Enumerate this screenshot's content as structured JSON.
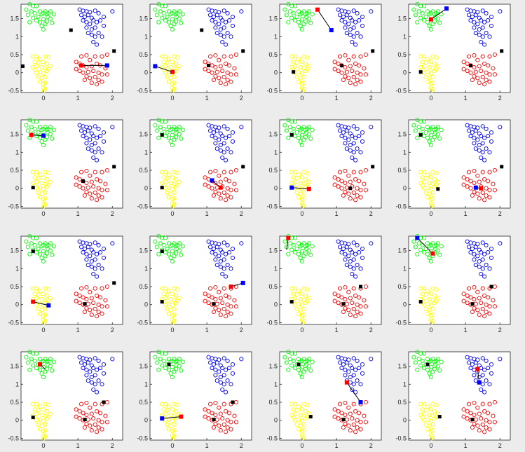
{
  "chart_data": {
    "type": "scatter",
    "description": "4x4 grid of small scatter-plot panels showing four clusters of points (open circles) and square markers linked by short line segments",
    "layout": {
      "rows": 4,
      "cols": 4
    },
    "axes": {
      "xlim": [
        -0.65,
        2.3
      ],
      "ylim": [
        -0.55,
        1.9
      ],
      "xticks": [
        0,
        1,
        2
      ],
      "xtick_labels": [
        "0",
        "1",
        "2"
      ],
      "yticks": [
        -0.5,
        0,
        0.5,
        1,
        1.5
      ],
      "ytick_labels": [
        "-0.5",
        "0",
        "0.5",
        "1",
        "1.5"
      ]
    },
    "colors": {
      "green": "#00ff00",
      "blue": "#0000ff",
      "yellow": "#ffff00",
      "red": "#ff0000",
      "black": "#000000",
      "background": "#ececec"
    },
    "clusters": [
      {
        "color": "green",
        "points": [
          [
            -0.4,
            1.9
          ],
          [
            -0.3,
            1.85
          ],
          [
            -0.2,
            1.85
          ],
          [
            -0.5,
            1.75
          ],
          [
            -0.45,
            1.6
          ],
          [
            -0.35,
            1.7
          ],
          [
            -0.25,
            1.65
          ],
          [
            -0.15,
            1.55
          ],
          [
            -0.1,
            1.7
          ],
          [
            -0.05,
            1.62
          ],
          [
            0.0,
            1.65
          ],
          [
            0.05,
            1.7
          ],
          [
            0.1,
            1.62
          ],
          [
            0.15,
            1.65
          ],
          [
            0.2,
            1.7
          ],
          [
            -0.2,
            1.45
          ],
          [
            -0.1,
            1.4
          ],
          [
            0.0,
            1.48
          ],
          [
            0.1,
            1.42
          ],
          [
            0.05,
            1.35
          ],
          [
            -0.05,
            1.3
          ],
          [
            0.0,
            1.2
          ],
          [
            0.12,
            1.55
          ],
          [
            0.2,
            1.5
          ],
          [
            -0.3,
            1.52
          ],
          [
            0.3,
            1.62
          ],
          [
            -0.4,
            1.4
          ],
          [
            0.25,
            1.38
          ]
        ]
      },
      {
        "color": "blue",
        "points": [
          [
            1.05,
            1.75
          ],
          [
            1.15,
            1.72
          ],
          [
            1.25,
            1.7
          ],
          [
            1.35,
            1.68
          ],
          [
            1.5,
            1.72
          ],
          [
            1.6,
            1.65
          ],
          [
            1.75,
            1.55
          ],
          [
            2.0,
            1.7
          ],
          [
            1.1,
            1.6
          ],
          [
            1.2,
            1.55
          ],
          [
            1.3,
            1.6
          ],
          [
            1.4,
            1.52
          ],
          [
            1.45,
            1.45
          ],
          [
            1.55,
            1.4
          ],
          [
            1.35,
            1.35
          ],
          [
            1.25,
            1.4
          ],
          [
            1.15,
            1.45
          ],
          [
            1.5,
            1.25
          ],
          [
            1.4,
            1.2
          ],
          [
            1.3,
            1.1
          ],
          [
            1.5,
            1.0
          ],
          [
            1.4,
            1.05
          ],
          [
            1.6,
            1.1
          ],
          [
            1.75,
            1.3
          ],
          [
            1.45,
            0.85
          ],
          [
            1.55,
            0.78
          ],
          [
            1.7,
            1.0
          ],
          [
            1.25,
            1.25
          ],
          [
            1.65,
            1.45
          ]
        ]
      },
      {
        "color": "yellow",
        "points": [
          [
            -0.3,
            0.45
          ],
          [
            -0.2,
            0.45
          ],
          [
            -0.1,
            0.38
          ],
          [
            0.05,
            0.45
          ],
          [
            0.15,
            0.42
          ],
          [
            -0.25,
            0.3
          ],
          [
            -0.15,
            0.28
          ],
          [
            0.0,
            0.3
          ],
          [
            0.1,
            0.25
          ],
          [
            -0.3,
            0.15
          ],
          [
            -0.2,
            0.18
          ],
          [
            -0.05,
            0.15
          ],
          [
            0.05,
            0.12
          ],
          [
            0.15,
            0.1
          ],
          [
            -0.2,
            0.0
          ],
          [
            -0.1,
            0.02
          ],
          [
            0.0,
            -0.02
          ],
          [
            0.1,
            0.05
          ],
          [
            -0.15,
            -0.12
          ],
          [
            -0.05,
            -0.15
          ],
          [
            0.05,
            -0.12
          ],
          [
            -0.1,
            -0.25
          ],
          [
            0.0,
            -0.3
          ],
          [
            0.05,
            -0.28
          ],
          [
            0.0,
            -0.42
          ],
          [
            0.05,
            -0.45
          ],
          [
            0.02,
            -0.5
          ],
          [
            -0.25,
            0.08
          ],
          [
            0.2,
            0.18
          ]
        ]
      },
      {
        "color": "red",
        "points": [
          [
            1.1,
            0.45
          ],
          [
            1.25,
            0.48
          ],
          [
            1.35,
            0.35
          ],
          [
            1.5,
            0.45
          ],
          [
            1.7,
            0.45
          ],
          [
            1.85,
            0.5
          ],
          [
            0.95,
            0.3
          ],
          [
            1.05,
            0.25
          ],
          [
            1.15,
            0.2
          ],
          [
            1.25,
            0.15
          ],
          [
            1.4,
            0.18
          ],
          [
            1.55,
            0.25
          ],
          [
            1.65,
            0.2
          ],
          [
            1.8,
            0.12
          ],
          [
            0.95,
            0.1
          ],
          [
            1.05,
            0.05
          ],
          [
            1.15,
            0.0
          ],
          [
            1.3,
            0.02
          ],
          [
            1.45,
            0.05
          ],
          [
            1.6,
            0.0
          ],
          [
            1.7,
            -0.05
          ],
          [
            1.25,
            -0.1
          ],
          [
            1.35,
            -0.15
          ],
          [
            1.5,
            -0.12
          ],
          [
            1.6,
            -0.2
          ],
          [
            1.4,
            -0.28
          ],
          [
            1.55,
            -0.32
          ],
          [
            1.7,
            -0.25
          ],
          [
            1.2,
            -0.2
          ],
          [
            1.85,
            -0.05
          ]
        ]
      }
    ],
    "panels": [
      {
        "markers": [
          {
            "c": "black",
            "x": -0.6,
            "y": 0.18
          },
          {
            "c": "black",
            "x": 0.8,
            "y": 1.18
          },
          {
            "c": "black",
            "x": 2.05,
            "y": 0.6
          },
          {
            "c": "red",
            "x": 1.1,
            "y": 0.2
          },
          {
            "c": "blue",
            "x": 1.85,
            "y": 0.2
          }
        ],
        "lines": [
          [
            [
              1.1,
              0.2
            ],
            [
              1.85,
              0.2
            ]
          ]
        ]
      },
      {
        "markers": [
          {
            "c": "blue",
            "x": -0.5,
            "y": 0.18
          },
          {
            "c": "red",
            "x": 0.0,
            "y": 0.02
          },
          {
            "c": "black",
            "x": 0.85,
            "y": 1.18
          },
          {
            "c": "black",
            "x": 2.05,
            "y": 0.6
          },
          {
            "c": "black",
            "x": 1.05,
            "y": 0.2
          }
        ],
        "lines": [
          [
            [
              -0.5,
              0.18
            ],
            [
              0.0,
              0.02
            ]
          ]
        ]
      },
      {
        "markers": [
          {
            "c": "red",
            "x": 0.45,
            "y": 1.75
          },
          {
            "c": "blue",
            "x": 0.85,
            "y": 1.18
          },
          {
            "c": "black",
            "x": 2.05,
            "y": 0.6
          },
          {
            "c": "black",
            "x": 1.15,
            "y": 0.2
          },
          {
            "c": "black",
            "x": -0.25,
            "y": 0.02
          }
        ],
        "lines": [
          [
            [
              0.45,
              1.75
            ],
            [
              0.85,
              1.18
            ]
          ]
        ]
      },
      {
        "markers": [
          {
            "c": "red",
            "x": 0.0,
            "y": 1.48
          },
          {
            "c": "blue",
            "x": 0.45,
            "y": 1.78
          },
          {
            "c": "black",
            "x": 2.05,
            "y": 0.6
          },
          {
            "c": "black",
            "x": 1.15,
            "y": 0.2
          },
          {
            "c": "black",
            "x": -0.3,
            "y": 0.02
          }
        ],
        "lines": [
          [
            [
              0.0,
              1.48
            ],
            [
              0.45,
              1.78
            ]
          ]
        ]
      },
      {
        "markers": [
          {
            "c": "red",
            "x": -0.35,
            "y": 1.48
          },
          {
            "c": "blue",
            "x": 0.0,
            "y": 1.46
          },
          {
            "c": "black",
            "x": 2.05,
            "y": 0.6
          },
          {
            "c": "black",
            "x": 1.15,
            "y": 0.2
          },
          {
            "c": "black",
            "x": -0.3,
            "y": 0.02
          }
        ],
        "lines": [
          [
            [
              -0.35,
              1.48
            ],
            [
              0.0,
              1.46
            ]
          ]
        ]
      },
      {
        "markers": [
          {
            "c": "black",
            "x": -0.3,
            "y": 1.48
          },
          {
            "c": "blue",
            "x": 1.15,
            "y": 0.22
          },
          {
            "c": "red",
            "x": 1.4,
            "y": 0.02
          },
          {
            "c": "black",
            "x": 2.05,
            "y": 0.6
          },
          {
            "c": "black",
            "x": -0.3,
            "y": 0.02
          }
        ],
        "lines": [
          [
            [
              1.15,
              0.22
            ],
            [
              1.4,
              0.02
            ]
          ]
        ]
      },
      {
        "markers": [
          {
            "c": "black",
            "x": -0.3,
            "y": 1.48
          },
          {
            "c": "blue",
            "x": -0.3,
            "y": 0.02
          },
          {
            "c": "red",
            "x": 0.2,
            "y": -0.02
          },
          {
            "c": "black",
            "x": 2.05,
            "y": 0.6
          },
          {
            "c": "black",
            "x": 1.4,
            "y": 0.0
          }
        ],
        "lines": [
          [
            [
              -0.3,
              0.02
            ],
            [
              0.2,
              -0.02
            ]
          ]
        ]
      },
      {
        "markers": [
          {
            "c": "black",
            "x": -0.3,
            "y": 1.48
          },
          {
            "c": "black",
            "x": 2.05,
            "y": 0.6
          },
          {
            "c": "black",
            "x": 0.2,
            "y": -0.02
          },
          {
            "c": "blue",
            "x": 1.3,
            "y": 0.02
          },
          {
            "c": "red",
            "x": 1.45,
            "y": 0.0
          }
        ],
        "lines": [
          [
            [
              1.3,
              0.02
            ],
            [
              1.45,
              0.0
            ]
          ]
        ]
      },
      {
        "markers": [
          {
            "c": "black",
            "x": -0.3,
            "y": 1.48
          },
          {
            "c": "black",
            "x": 2.05,
            "y": 0.6
          },
          {
            "c": "red",
            "x": -0.3,
            "y": 0.08
          },
          {
            "c": "blue",
            "x": 0.15,
            "y": -0.02
          },
          {
            "c": "black",
            "x": 1.2,
            "y": 0.02
          }
        ],
        "lines": [
          [
            [
              -0.3,
              0.08
            ],
            [
              0.15,
              -0.02
            ]
          ]
        ]
      },
      {
        "markers": [
          {
            "c": "black",
            "x": -0.3,
            "y": 1.48
          },
          {
            "c": "black",
            "x": -0.3,
            "y": 0.08
          },
          {
            "c": "black",
            "x": 1.2,
            "y": 0.02
          },
          {
            "c": "red",
            "x": 1.7,
            "y": 0.5
          },
          {
            "c": "blue",
            "x": 2.05,
            "y": 0.6
          }
        ],
        "lines": [
          [
            [
              1.7,
              0.5
            ],
            [
              2.05,
              0.6
            ]
          ]
        ]
      },
      {
        "markers": [
          {
            "c": "red",
            "x": -0.4,
            "y": 1.85
          },
          {
            "c": "black",
            "x": -0.3,
            "y": 0.08
          },
          {
            "c": "black",
            "x": 1.2,
            "y": 0.02
          },
          {
            "c": "black",
            "x": 1.7,
            "y": 0.5
          }
        ],
        "lines": [
          [
            [
              -0.4,
              1.85
            ],
            [
              -0.45,
              1.52
            ]
          ]
        ]
      },
      {
        "markers": [
          {
            "c": "blue",
            "x": -0.4,
            "y": 1.85
          },
          {
            "c": "red",
            "x": 0.05,
            "y": 1.42
          },
          {
            "c": "black",
            "x": -0.3,
            "y": 0.08
          },
          {
            "c": "black",
            "x": 1.2,
            "y": 0.02
          },
          {
            "c": "black",
            "x": 1.75,
            "y": 0.5
          }
        ],
        "lines": [
          [
            [
              -0.4,
              1.85
            ],
            [
              0.05,
              1.42
            ]
          ]
        ]
      },
      {
        "markers": [
          {
            "c": "red",
            "x": -0.1,
            "y": 1.55
          },
          {
            "c": "black",
            "x": -0.3,
            "y": 0.08
          },
          {
            "c": "black",
            "x": 1.2,
            "y": 0.02
          },
          {
            "c": "black",
            "x": 1.75,
            "y": 0.5
          }
        ],
        "lines": [
          [
            [
              -0.1,
              1.55
            ],
            [
              0.05,
              1.42
            ]
          ]
        ]
      },
      {
        "markers": [
          {
            "c": "black",
            "x": -0.1,
            "y": 1.55
          },
          {
            "c": "blue",
            "x": -0.3,
            "y": 0.05
          },
          {
            "c": "red",
            "x": 0.25,
            "y": 0.1
          },
          {
            "c": "black",
            "x": 1.2,
            "y": 0.02
          },
          {
            "c": "black",
            "x": 1.75,
            "y": 0.5
          }
        ],
        "lines": [
          [
            [
              -0.3,
              0.05
            ],
            [
              0.25,
              0.1
            ]
          ]
        ]
      },
      {
        "markers": [
          {
            "c": "black",
            "x": -0.1,
            "y": 1.55
          },
          {
            "c": "black",
            "x": 0.25,
            "y": 0.1
          },
          {
            "c": "red",
            "x": 1.3,
            "y": 1.05
          },
          {
            "c": "blue",
            "x": 1.7,
            "y": 0.5
          },
          {
            "c": "black",
            "x": 1.2,
            "y": 0.02
          }
        ],
        "lines": [
          [
            [
              1.3,
              1.05
            ],
            [
              1.7,
              0.5
            ]
          ]
        ]
      },
      {
        "markers": [
          {
            "c": "black",
            "x": -0.1,
            "y": 1.55
          },
          {
            "c": "black",
            "x": 0.25,
            "y": 0.1
          },
          {
            "c": "red",
            "x": 1.35,
            "y": 1.42
          },
          {
            "c": "blue",
            "x": 1.4,
            "y": 1.05
          },
          {
            "c": "black",
            "x": 1.2,
            "y": 0.02
          }
        ],
        "lines": [
          [
            [
              1.35,
              1.42
            ],
            [
              1.4,
              1.05
            ]
          ]
        ]
      }
    ]
  }
}
